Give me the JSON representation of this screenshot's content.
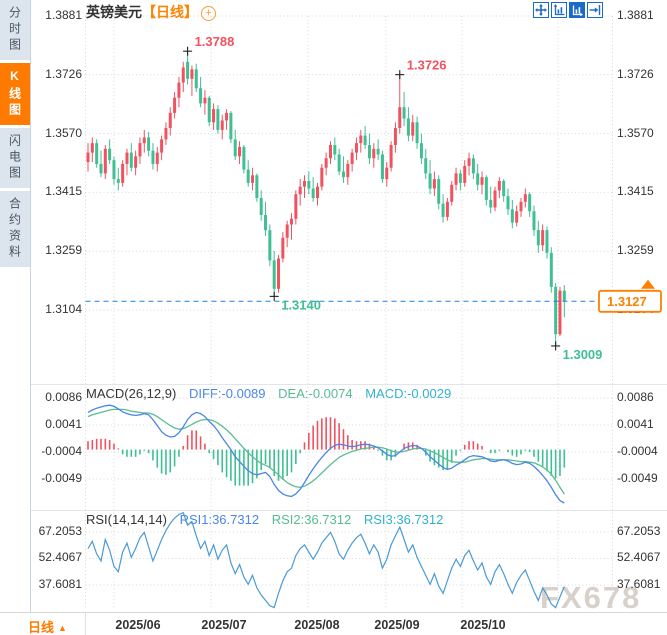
{
  "window": {
    "title_symbol": "英镑美元",
    "title_period": "【日线】"
  },
  "sidebar": {
    "items": [
      {
        "label": "分时图",
        "active": false
      },
      {
        "label": "K线图",
        "active": true
      },
      {
        "label": "闪电图",
        "active": false
      },
      {
        "label": "合约资料",
        "active": false
      }
    ]
  },
  "toolbar": {
    "icons": [
      "pan",
      "fit-y-axis",
      "fit-x-axis-active",
      "shift-right"
    ]
  },
  "bottom_bar": {
    "period_label": "日线",
    "period_arrow": "▲"
  },
  "watermark": "FX678",
  "colors": {
    "up": "#f0525f",
    "down": "#3fbf92",
    "accent_orange": "#ff7f00",
    "price_line": "#1e82e6",
    "diff_line": "#4a86e8",
    "dea_line": "#5abd94",
    "macd_text": "#2fb3cd",
    "rsi_line": "#4a9ad4",
    "grid": "#d4d7db",
    "sidebar_active_bg": "#ff7a00"
  },
  "chart_data": [
    {
      "type": "candlestick",
      "title": "英镑美元 日线",
      "y_axis_labels": [
        "1.3881",
        "1.3726",
        "1.3570",
        "1.3415",
        "1.3259",
        "1.3104"
      ],
      "x_axis_labels": [
        "2025/06",
        "2025/07",
        "2025/08",
        "2025/09",
        "2025/10"
      ],
      "current_price": {
        "label": "1.3127",
        "value": 1.3127
      },
      "annotations": [
        {
          "text": "1.3788",
          "candle_index": 23,
          "price": 1.3788,
          "position": "above",
          "color": "#f0525f"
        },
        {
          "text": "1.3726",
          "candle_index": 72,
          "price": 1.3726,
          "position": "above",
          "color": "#f0525f"
        },
        {
          "text": "1.3140",
          "candle_index": 43,
          "price": 1.314,
          "position": "below",
          "color": "#3fbf92"
        },
        {
          "text": "1.3009",
          "candle_index": 108,
          "price": 1.3009,
          "position": "below",
          "color": "#3fbf92"
        }
      ],
      "candles": [
        [
          1.3495,
          1.3545,
          1.347,
          1.352
        ],
        [
          1.352,
          1.356,
          1.3495,
          1.3545
        ],
        [
          1.3545,
          1.3555,
          1.348,
          1.349
        ],
        [
          1.349,
          1.3525,
          1.3455,
          1.3465
        ],
        [
          1.3465,
          1.354,
          1.345,
          1.353
        ],
        [
          1.353,
          1.3555,
          1.349,
          1.35
        ],
        [
          1.35,
          1.351,
          1.3435,
          1.345
        ],
        [
          1.345,
          1.348,
          1.342,
          1.344
        ],
        [
          1.344,
          1.35,
          1.343,
          1.349
        ],
        [
          1.349,
          1.353,
          1.346,
          1.352
        ],
        [
          1.352,
          1.3545,
          1.347,
          1.348
        ],
        [
          1.348,
          1.3525,
          1.346,
          1.351
        ],
        [
          1.351,
          1.356,
          1.349,
          1.3545
        ],
        [
          1.3545,
          1.358,
          1.352,
          1.356
        ],
        [
          1.356,
          1.3575,
          1.351,
          1.3525
        ],
        [
          1.3525,
          1.3545,
          1.3475,
          1.349
        ],
        [
          1.349,
          1.3535,
          1.347,
          1.352
        ],
        [
          1.352,
          1.3565,
          1.35,
          1.3555
        ],
        [
          1.3555,
          1.36,
          1.354,
          1.3585
        ],
        [
          1.3585,
          1.364,
          1.3565,
          1.3625
        ],
        [
          1.3625,
          1.368,
          1.361,
          1.3665
        ],
        [
          1.3665,
          1.372,
          1.364,
          1.3705
        ],
        [
          1.3705,
          1.376,
          1.368,
          1.3745
        ],
        [
          1.376,
          1.3788,
          1.37,
          1.3715
        ],
        [
          1.3715,
          1.375,
          1.367,
          1.374
        ],
        [
          1.374,
          1.3755,
          1.368,
          1.369
        ],
        [
          1.369,
          1.372,
          1.364,
          1.365
        ],
        [
          1.365,
          1.3685,
          1.362,
          1.3665
        ],
        [
          1.3665,
          1.367,
          1.359,
          1.36
        ],
        [
          1.36,
          1.365,
          1.358,
          1.3635
        ],
        [
          1.3635,
          1.3645,
          1.357,
          1.358
        ],
        [
          1.358,
          1.362,
          1.3555,
          1.3605
        ],
        [
          1.3605,
          1.3635,
          1.358,
          1.3625
        ],
        [
          1.3625,
          1.363,
          1.3545,
          1.3555
        ],
        [
          1.3555,
          1.358,
          1.35,
          1.351
        ],
        [
          1.351,
          1.355,
          1.349,
          1.3535
        ],
        [
          1.3535,
          1.354,
          1.3465,
          1.3475
        ],
        [
          1.3475,
          1.35,
          1.343,
          1.344
        ],
        [
          1.344,
          1.348,
          1.342,
          1.346
        ],
        [
          1.346,
          1.3465,
          1.339,
          1.34
        ],
        [
          1.34,
          1.342,
          1.334,
          1.3355
        ],
        [
          1.3355,
          1.339,
          1.33,
          1.3315
        ],
        [
          1.3315,
          1.333,
          1.322,
          1.3235
        ],
        [
          1.3235,
          1.326,
          1.314,
          1.316
        ],
        [
          1.316,
          1.325,
          1.315,
          1.324
        ],
        [
          1.324,
          1.331,
          1.323,
          1.3295
        ],
        [
          1.3295,
          1.334,
          1.327,
          1.333
        ],
        [
          1.333,
          1.336,
          1.329,
          1.3345
        ],
        [
          1.3345,
          1.342,
          1.333,
          1.341
        ],
        [
          1.341,
          1.345,
          1.338,
          1.343
        ],
        [
          1.343,
          1.346,
          1.34,
          1.3445
        ],
        [
          1.3445,
          1.347,
          1.341,
          1.3425
        ],
        [
          1.3425,
          1.3455,
          1.339,
          1.34
        ],
        [
          1.34,
          1.344,
          1.338,
          1.343
        ],
        [
          1.343,
          1.349,
          1.342,
          1.348
        ],
        [
          1.348,
          1.352,
          1.346,
          1.3505
        ],
        [
          1.3505,
          1.355,
          1.349,
          1.354
        ],
        [
          1.354,
          1.356,
          1.35,
          1.3515
        ],
        [
          1.3515,
          1.353,
          1.346,
          1.347
        ],
        [
          1.347,
          1.351,
          1.344,
          1.3455
        ],
        [
          1.3455,
          1.35,
          1.3435,
          1.349
        ],
        [
          1.349,
          1.353,
          1.347,
          1.352
        ],
        [
          1.352,
          1.356,
          1.35,
          1.3545
        ],
        [
          1.3545,
          1.358,
          1.352,
          1.3565
        ],
        [
          1.3565,
          1.359,
          1.353,
          1.354
        ],
        [
          1.354,
          1.357,
          1.349,
          1.3505
        ],
        [
          1.3505,
          1.3545,
          1.348,
          1.353
        ],
        [
          1.353,
          1.3555,
          1.35,
          1.3515
        ],
        [
          1.3515,
          1.3525,
          1.344,
          1.345
        ],
        [
          1.345,
          1.3495,
          1.343,
          1.348
        ],
        [
          1.348,
          1.355,
          1.347,
          1.354
        ],
        [
          1.354,
          1.36,
          1.352,
          1.3585
        ],
        [
          1.3585,
          1.3726,
          1.357,
          1.364
        ],
        [
          1.364,
          1.368,
          1.359,
          1.361
        ],
        [
          1.361,
          1.364,
          1.355,
          1.3565
        ],
        [
          1.3565,
          1.362,
          1.355,
          1.36
        ],
        [
          1.36,
          1.3615,
          1.353,
          1.3545
        ],
        [
          1.3545,
          1.357,
          1.349,
          1.3505
        ],
        [
          1.3505,
          1.353,
          1.345,
          1.3465
        ],
        [
          1.3465,
          1.35,
          1.341,
          1.3425
        ],
        [
          1.3425,
          1.347,
          1.3405,
          1.345
        ],
        [
          1.345,
          1.346,
          1.337,
          1.3385
        ],
        [
          1.3385,
          1.341,
          1.3335,
          1.335
        ],
        [
          1.335,
          1.34,
          1.334,
          1.339
        ],
        [
          1.339,
          1.3445,
          1.338,
          1.3435
        ],
        [
          1.3435,
          1.348,
          1.342,
          1.3465
        ],
        [
          1.3465,
          1.3475,
          1.342,
          1.344
        ],
        [
          1.344,
          1.35,
          1.343,
          1.3485
        ],
        [
          1.3485,
          1.352,
          1.346,
          1.3505
        ],
        [
          1.3505,
          1.3515,
          1.345,
          1.3465
        ],
        [
          1.3465,
          1.349,
          1.342,
          1.3435
        ],
        [
          1.3435,
          1.347,
          1.341,
          1.3455
        ],
        [
          1.3455,
          1.346,
          1.338,
          1.3395
        ],
        [
          1.3395,
          1.343,
          1.336,
          1.3375
        ],
        [
          1.3375,
          1.343,
          1.3365,
          1.342
        ],
        [
          1.342,
          1.3455,
          1.34,
          1.3445
        ],
        [
          1.3445,
          1.345,
          1.339,
          1.3405
        ],
        [
          1.3405,
          1.3425,
          1.3355,
          1.337
        ],
        [
          1.337,
          1.3395,
          1.332,
          1.3335
        ],
        [
          1.3335,
          1.338,
          1.3325,
          1.3365
        ],
        [
          1.3365,
          1.34,
          1.335,
          1.339
        ],
        [
          1.339,
          1.3425,
          1.3375,
          1.341
        ],
        [
          1.341,
          1.3415,
          1.335,
          1.3365
        ],
        [
          1.3365,
          1.338,
          1.33,
          1.3315
        ],
        [
          1.3315,
          1.334,
          1.3255,
          1.3275
        ],
        [
          1.3275,
          1.333,
          1.326,
          1.3315
        ],
        [
          1.3315,
          1.3325,
          1.324,
          1.3255
        ],
        [
          1.3255,
          1.327,
          1.315,
          1.3165
        ],
        [
          1.3165,
          1.3175,
          1.3009,
          1.304
        ],
        [
          1.304,
          1.3165,
          1.3035,
          1.3155
        ],
        [
          1.3155,
          1.317,
          1.3085,
          1.3127
        ]
      ]
    },
    {
      "type": "macd",
      "title": "MACD(26,12,9)",
      "legend": {
        "diff": "DIFF:-0.0089",
        "dea": "DEA:-0.0074",
        "macd": "MACD:-0.0029"
      },
      "y_axis_labels": [
        "0.0086",
        "0.0041",
        "-0.0004",
        "-0.0049"
      ],
      "histogram_formula": "2*(diff-dea)",
      "diff": [
        0.0062,
        0.0066,
        0.0069,
        0.0071,
        0.0073,
        0.0074,
        0.0072,
        0.0068,
        0.0063,
        0.006,
        0.0058,
        0.0057,
        0.0058,
        0.006,
        0.0058,
        0.005,
        0.004,
        0.003,
        0.0024,
        0.0021,
        0.0022,
        0.0028,
        0.0038,
        0.005,
        0.0058,
        0.0062,
        0.006,
        0.0055,
        0.0047,
        0.004,
        0.0031,
        0.002,
        0.001,
        0.0,
        -0.0012,
        -0.002,
        -0.0028,
        -0.0035,
        -0.004,
        -0.0042,
        -0.004,
        -0.0038,
        -0.0045,
        -0.0058,
        -0.0068,
        -0.0074,
        -0.0077,
        -0.0078,
        -0.0074,
        -0.0066,
        -0.0055,
        -0.0043,
        -0.0032,
        -0.0022,
        -0.0013,
        -0.0005,
        0.0002,
        0.0007,
        0.0009,
        0.0008,
        0.0006,
        0.0005,
        0.0006,
        0.0008,
        0.0009,
        0.0008,
        0.0006,
        0.0003,
        -0.0002,
        -0.0008,
        -0.0011,
        -0.001,
        -0.0004,
        0.0002,
        0.0005,
        0.0007,
        0.0006,
        0.0002,
        -0.0004,
        -0.0012,
        -0.0018,
        -0.0024,
        -0.003,
        -0.0033,
        -0.0031,
        -0.0026,
        -0.0022,
        -0.0017,
        -0.0012,
        -0.001,
        -0.0011,
        -0.0012,
        -0.0015,
        -0.0019,
        -0.002,
        -0.0018,
        -0.0017,
        -0.0019,
        -0.0023,
        -0.0025,
        -0.0024,
        -0.0021,
        -0.0023,
        -0.0028,
        -0.0035,
        -0.0043,
        -0.0052,
        -0.0063,
        -0.0075,
        -0.0085,
        -0.0089
      ],
      "dea": [
        0.0055,
        0.0058,
        0.006,
        0.0062,
        0.0064,
        0.0066,
        0.0067,
        0.0067,
        0.0067,
        0.0066,
        0.0064,
        0.0063,
        0.0062,
        0.0061,
        0.0061,
        0.0059,
        0.0055,
        0.005,
        0.0045,
        0.004,
        0.0036,
        0.0034,
        0.0035,
        0.0038,
        0.0042,
        0.0046,
        0.0049,
        0.005,
        0.005,
        0.0048,
        0.0044,
        0.0039,
        0.0033,
        0.0026,
        0.0018,
        0.001,
        0.0002,
        -0.0005,
        -0.0012,
        -0.0018,
        -0.0023,
        -0.0026,
        -0.003,
        -0.0036,
        -0.0042,
        -0.0049,
        -0.0055,
        -0.0059,
        -0.0062,
        -0.0063,
        -0.0061,
        -0.0057,
        -0.0052,
        -0.0046,
        -0.0039,
        -0.0032,
        -0.0025,
        -0.0019,
        -0.0013,
        -0.0009,
        -0.0006,
        -0.0003,
        -0.0001,
        0.0001,
        0.0002,
        0.0003,
        0.0004,
        0.0004,
        0.0003,
        0.0001,
        -0.0002,
        -0.0004,
        -0.0004,
        -0.0003,
        -0.0001,
        0.0001,
        0.0002,
        0.0002,
        0.0001,
        -0.0002,
        -0.0005,
        -0.0009,
        -0.0013,
        -0.0017,
        -0.002,
        -0.0021,
        -0.0021,
        -0.0021,
        -0.0019,
        -0.0017,
        -0.0016,
        -0.0015,
        -0.0015,
        -0.0016,
        -0.0017,
        -0.0017,
        -0.0017,
        -0.0017,
        -0.0018,
        -0.0019,
        -0.002,
        -0.002,
        -0.0021,
        -0.0022,
        -0.0025,
        -0.0029,
        -0.0034,
        -0.0041,
        -0.0051,
        -0.0063,
        -0.0074
      ]
    },
    {
      "type": "line",
      "title": "RSI(14,14,14)",
      "legend": {
        "rsi1": "RSI1:36.7312",
        "rsi2": "RSI2:36.7312",
        "rsi3": "RSI3:36.7312"
      },
      "y_axis_labels": [
        "67.2053",
        "52.4067",
        "37.6081"
      ],
      "rsi": [
        58,
        62,
        55,
        51,
        63,
        57,
        48,
        45,
        56,
        61,
        53,
        58,
        64,
        67,
        59,
        51,
        57,
        63,
        68,
        72,
        75,
        77,
        78,
        71,
        73,
        65,
        58,
        62,
        54,
        60,
        52,
        57,
        60,
        50,
        44,
        49,
        42,
        38,
        43,
        36,
        32,
        29,
        26,
        25,
        33,
        40,
        45,
        47,
        54,
        58,
        60,
        56,
        52,
        56,
        61,
        64,
        67,
        62,
        55,
        52,
        57,
        61,
        64,
        66,
        61,
        55,
        60,
        56,
        47,
        52,
        60,
        65,
        70,
        63,
        56,
        60,
        53,
        48,
        43,
        38,
        44,
        37,
        33,
        40,
        47,
        52,
        48,
        54,
        57,
        51,
        46,
        50,
        42,
        38,
        45,
        49,
        44,
        38,
        33,
        39,
        43,
        46,
        40,
        34,
        29,
        36,
        32,
        27,
        25,
        31,
        36.73
      ]
    }
  ]
}
